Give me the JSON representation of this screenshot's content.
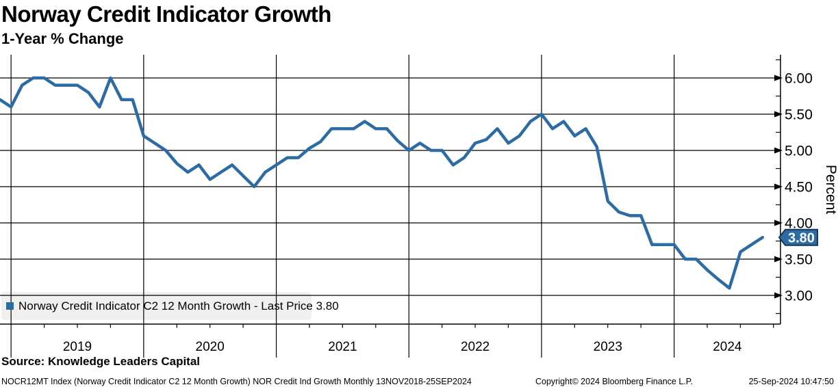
{
  "header": {
    "title": "Norway Credit Indicator Growth",
    "subtitle": "1-Year % Change"
  },
  "chart_data": {
    "type": "line",
    "title": "Norway Credit Indicator Growth",
    "subtitle": "1-Year % Change",
    "ylabel": "Percent",
    "ylim": [
      2.6,
      6.3
    ],
    "grid": true,
    "legend_position": "bottom-left",
    "ytick_labels": [
      "6.00",
      "5.50",
      "5.00",
      "4.50",
      "4.00",
      "3.50",
      "3.00"
    ],
    "ytick_values": [
      6.0,
      5.5,
      5.0,
      4.5,
      4.0,
      3.5,
      3.0
    ],
    "ytick_minor_step": 0.25,
    "x_year_labels": [
      "2019",
      "2020",
      "2021",
      "2022",
      "2023",
      "2024"
    ],
    "months": [
      "2018-11",
      "2018-12",
      "2019-01",
      "2019-02",
      "2019-03",
      "2019-04",
      "2019-05",
      "2019-06",
      "2019-07",
      "2019-08",
      "2019-09",
      "2019-10",
      "2019-11",
      "2019-12",
      "2020-01",
      "2020-02",
      "2020-03",
      "2020-04",
      "2020-05",
      "2020-06",
      "2020-07",
      "2020-08",
      "2020-09",
      "2020-10",
      "2020-11",
      "2020-12",
      "2021-01",
      "2021-02",
      "2021-03",
      "2021-04",
      "2021-05",
      "2021-06",
      "2021-07",
      "2021-08",
      "2021-09",
      "2021-10",
      "2021-11",
      "2021-12",
      "2022-01",
      "2022-02",
      "2022-03",
      "2022-04",
      "2022-05",
      "2022-06",
      "2022-07",
      "2022-08",
      "2022-09",
      "2022-10",
      "2022-11",
      "2022-12",
      "2023-01",
      "2023-02",
      "2023-03",
      "2023-04",
      "2023-05",
      "2023-06",
      "2023-07",
      "2023-08",
      "2023-09",
      "2023-10",
      "2023-11",
      "2023-12",
      "2024-01",
      "2024-02",
      "2024-03",
      "2024-04",
      "2024-05",
      "2024-06",
      "2024-07",
      "2024-08"
    ],
    "values": [
      5.7,
      5.6,
      5.9,
      6.0,
      6.0,
      5.9,
      5.9,
      5.9,
      5.8,
      5.6,
      6.0,
      5.7,
      5.7,
      5.2,
      5.1,
      5.0,
      4.82,
      4.7,
      4.8,
      4.6,
      4.7,
      4.8,
      4.65,
      4.5,
      4.7,
      4.8,
      4.9,
      4.9,
      5.03,
      5.12,
      5.3,
      5.3,
      5.3,
      5.4,
      5.3,
      5.3,
      5.13,
      5.0,
      5.1,
      5.0,
      5.0,
      4.8,
      4.9,
      5.1,
      5.15,
      5.3,
      5.1,
      5.2,
      5.4,
      5.5,
      5.3,
      5.4,
      5.2,
      5.3,
      5.05,
      4.3,
      4.15,
      4.1,
      4.1,
      3.7,
      3.7,
      3.7,
      3.5,
      3.5,
      3.35,
      3.22,
      3.1,
      3.6,
      3.7,
      3.8
    ],
    "series_name": "Norway Credit Indicator C2 12 Month Growth",
    "legend": "Norway Credit Indicator C2 12 Month Growth - Last Price 3.80",
    "last_price": 3.8,
    "last_price_label": "3.80",
    "line_color": "#2d6ba5",
    "tag_border_color": "#16365c",
    "legend_bg_color": "#f0f0ee",
    "grid_color": "#000000"
  },
  "source": {
    "label": "Source: Knowledge Leaders Capital"
  },
  "footer": {
    "left": "NOCR12MT Index (Norway Credit Indicator C2 12 Month Growth) NOR Credit Ind Growth  Monthly 13NOV2018-25SEP2024",
    "center": "Copyright© 2024 Bloomberg Finance L.P.",
    "right": "25-Sep-2024 10:47:50"
  }
}
